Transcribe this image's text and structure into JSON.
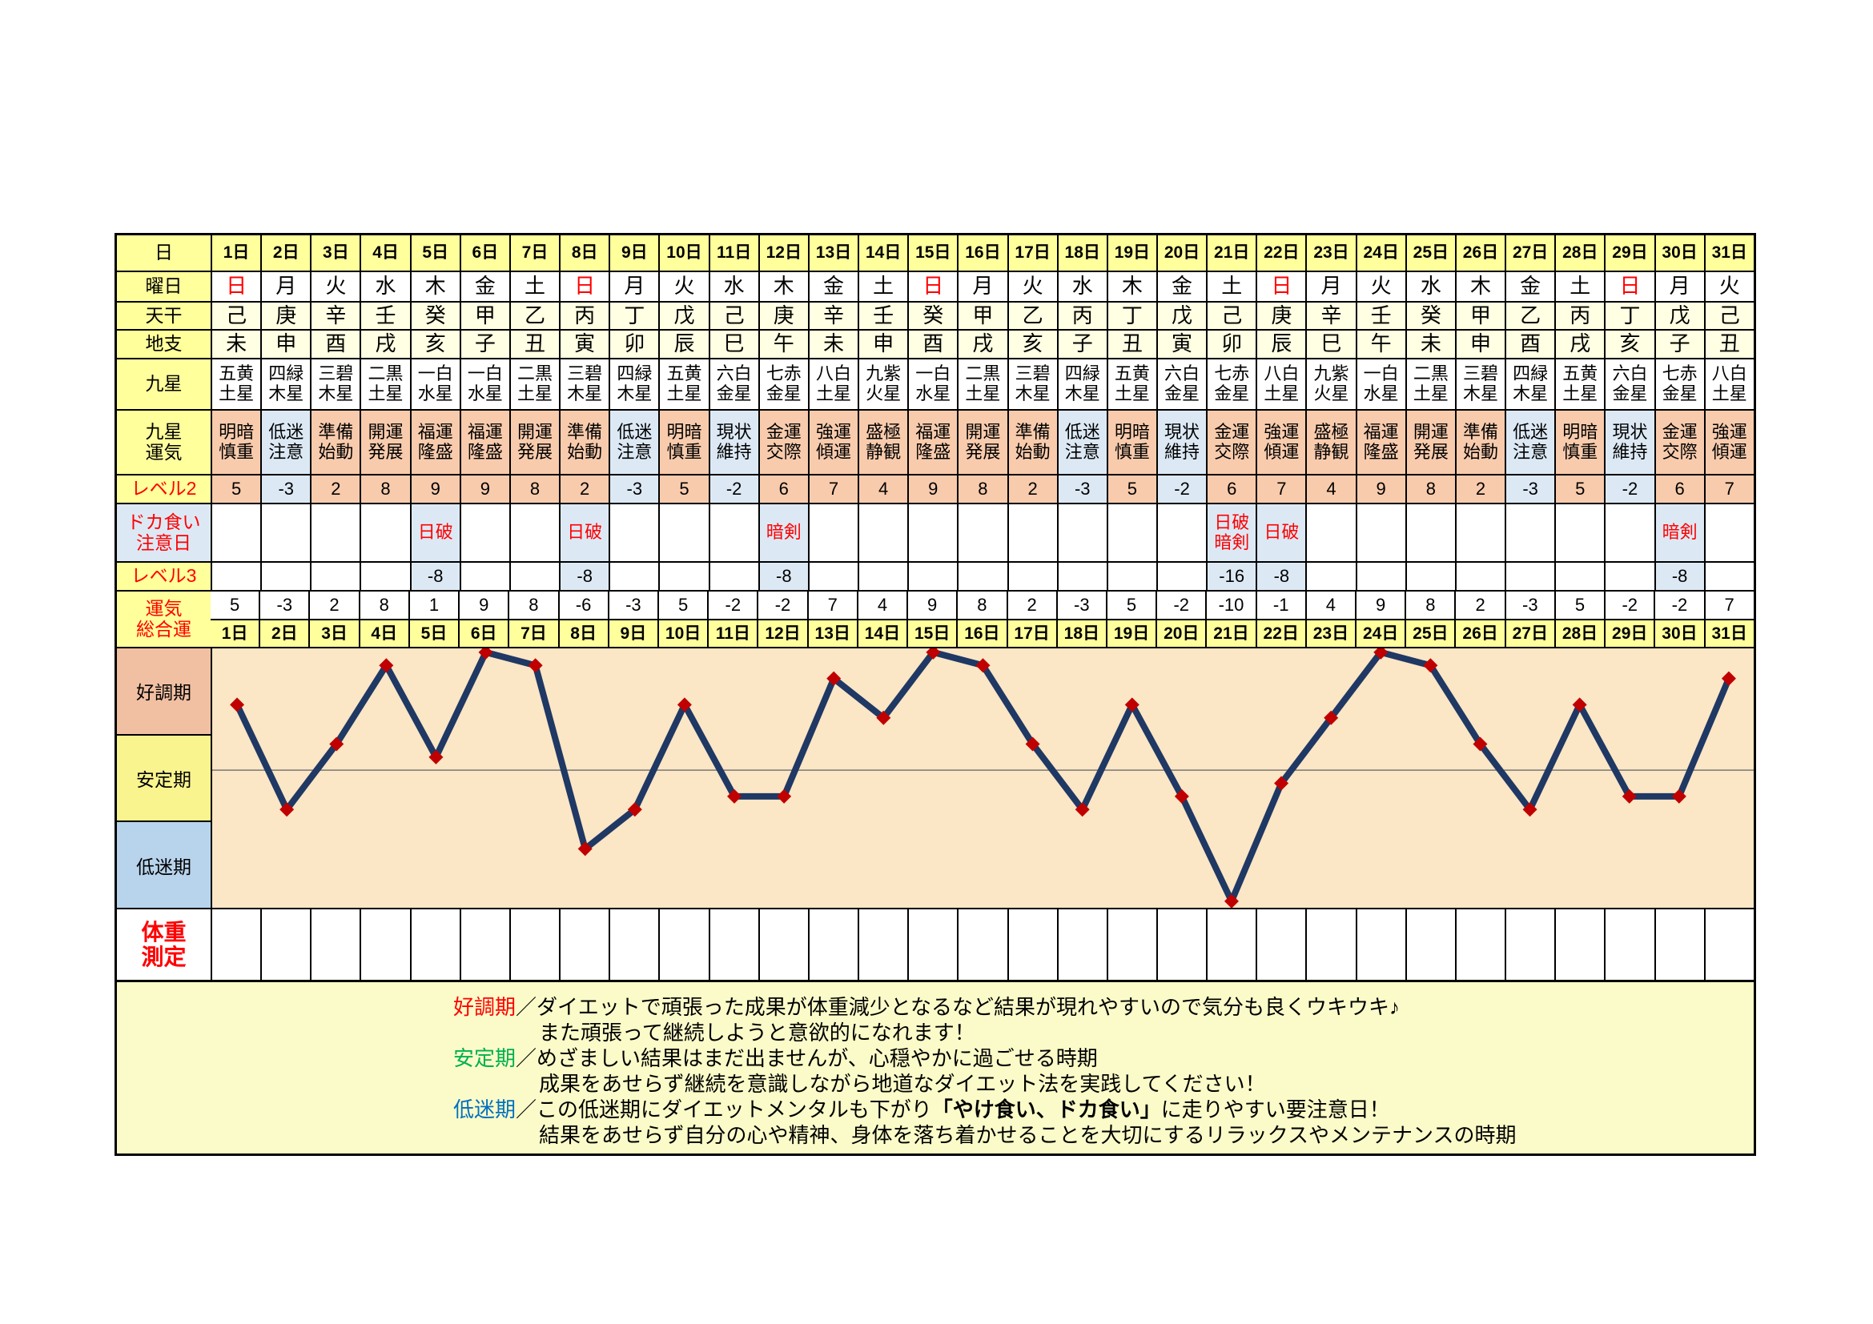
{
  "row_labels": {
    "day": "日",
    "weekday": "曜日",
    "stem": "天干",
    "branch": "地支",
    "star": "九星",
    "fortune": "九星\n運気",
    "level2": "レベル2",
    "caution": "ドカ食い\n注意日",
    "level3": "レベル3",
    "total": "運気\n総合運",
    "weight": "体重\n測定"
  },
  "bands": [
    {
      "label": "好調期",
      "color": "#F1C0A2"
    },
    {
      "label": "安定期",
      "color": "#FAF48F"
    },
    {
      "label": "低迷期",
      "color": "#B8D4EC"
    }
  ],
  "days": [
    {
      "day": "1日",
      "weekday": "日",
      "sunday": true,
      "stem": "己",
      "branch": "未",
      "star": "五黄\n土星",
      "fortune": "明暗\n慎重",
      "tone": "pink",
      "level2": "5",
      "caution": "",
      "level3": "",
      "total": "5"
    },
    {
      "day": "2日",
      "weekday": "月",
      "sunday": false,
      "stem": "庚",
      "branch": "申",
      "star": "四緑\n木星",
      "fortune": "低迷\n注意",
      "tone": "blue",
      "level2": "-3",
      "caution": "",
      "level3": "",
      "total": "-3"
    },
    {
      "day": "3日",
      "weekday": "火",
      "sunday": false,
      "stem": "辛",
      "branch": "酉",
      "star": "三碧\n木星",
      "fortune": "準備\n始動",
      "tone": "pink",
      "level2": "2",
      "caution": "",
      "level3": "",
      "total": "2"
    },
    {
      "day": "4日",
      "weekday": "水",
      "sunday": false,
      "stem": "壬",
      "branch": "戌",
      "star": "二黒\n土星",
      "fortune": "開運\n発展",
      "tone": "pink",
      "level2": "8",
      "caution": "",
      "level3": "",
      "total": "8"
    },
    {
      "day": "5日",
      "weekday": "木",
      "sunday": false,
      "stem": "癸",
      "branch": "亥",
      "star": "一白\n水星",
      "fortune": "福運\n隆盛",
      "tone": "pink",
      "level2": "9",
      "caution": "日破",
      "level3": "-8",
      "total": "1"
    },
    {
      "day": "6日",
      "weekday": "金",
      "sunday": false,
      "stem": "甲",
      "branch": "子",
      "star": "一白\n水星",
      "fortune": "福運\n隆盛",
      "tone": "pink",
      "level2": "9",
      "caution": "",
      "level3": "",
      "total": "9"
    },
    {
      "day": "7日",
      "weekday": "土",
      "sunday": false,
      "stem": "乙",
      "branch": "丑",
      "star": "二黒\n土星",
      "fortune": "開運\n発展",
      "tone": "pink",
      "level2": "8",
      "caution": "",
      "level3": "",
      "total": "8"
    },
    {
      "day": "8日",
      "weekday": "日",
      "sunday": true,
      "stem": "丙",
      "branch": "寅",
      "star": "三碧\n木星",
      "fortune": "準備\n始動",
      "tone": "pink",
      "level2": "2",
      "caution": "日破",
      "level3": "-8",
      "total": "-6"
    },
    {
      "day": "9日",
      "weekday": "月",
      "sunday": false,
      "stem": "丁",
      "branch": "卯",
      "star": "四緑\n木星",
      "fortune": "低迷\n注意",
      "tone": "blue",
      "level2": "-3",
      "caution": "",
      "level3": "",
      "total": "-3"
    },
    {
      "day": "10日",
      "weekday": "火",
      "sunday": false,
      "stem": "戊",
      "branch": "辰",
      "star": "五黄\n土星",
      "fortune": "明暗\n慎重",
      "tone": "pink",
      "level2": "5",
      "caution": "",
      "level3": "",
      "total": "5"
    },
    {
      "day": "11日",
      "weekday": "水",
      "sunday": false,
      "stem": "己",
      "branch": "巳",
      "star": "六白\n金星",
      "fortune": "現状\n維持",
      "tone": "blue",
      "level2": "-2",
      "caution": "",
      "level3": "",
      "total": "-2"
    },
    {
      "day": "12日",
      "weekday": "木",
      "sunday": false,
      "stem": "庚",
      "branch": "午",
      "star": "七赤\n金星",
      "fortune": "金運\n交際",
      "tone": "pink",
      "level2": "6",
      "caution": "暗剣",
      "level3": "-8",
      "total": "-2"
    },
    {
      "day": "13日",
      "weekday": "金",
      "sunday": false,
      "stem": "辛",
      "branch": "未",
      "star": "八白\n土星",
      "fortune": "強運\n傾運",
      "tone": "pink",
      "level2": "7",
      "caution": "",
      "level3": "",
      "total": "7"
    },
    {
      "day": "14日",
      "weekday": "土",
      "sunday": false,
      "stem": "壬",
      "branch": "申",
      "star": "九紫\n火星",
      "fortune": "盛極\n静観",
      "tone": "pink",
      "level2": "4",
      "caution": "",
      "level3": "",
      "total": "4"
    },
    {
      "day": "15日",
      "weekday": "日",
      "sunday": true,
      "stem": "癸",
      "branch": "酉",
      "star": "一白\n水星",
      "fortune": "福運\n隆盛",
      "tone": "pink",
      "level2": "9",
      "caution": "",
      "level3": "",
      "total": "9"
    },
    {
      "day": "16日",
      "weekday": "月",
      "sunday": false,
      "stem": "甲",
      "branch": "戌",
      "star": "二黒\n土星",
      "fortune": "開運\n発展",
      "tone": "pink",
      "level2": "8",
      "caution": "",
      "level3": "",
      "total": "8"
    },
    {
      "day": "17日",
      "weekday": "火",
      "sunday": false,
      "stem": "乙",
      "branch": "亥",
      "star": "三碧\n木星",
      "fortune": "準備\n始動",
      "tone": "pink",
      "level2": "2",
      "caution": "",
      "level3": "",
      "total": "2"
    },
    {
      "day": "18日",
      "weekday": "水",
      "sunday": false,
      "stem": "丙",
      "branch": "子",
      "star": "四緑\n木星",
      "fortune": "低迷\n注意",
      "tone": "blue",
      "level2": "-3",
      "caution": "",
      "level3": "",
      "total": "-3"
    },
    {
      "day": "19日",
      "weekday": "木",
      "sunday": false,
      "stem": "丁",
      "branch": "丑",
      "star": "五黄\n土星",
      "fortune": "明暗\n慎重",
      "tone": "pink",
      "level2": "5",
      "caution": "",
      "level3": "",
      "total": "5"
    },
    {
      "day": "20日",
      "weekday": "金",
      "sunday": false,
      "stem": "戊",
      "branch": "寅",
      "star": "六白\n金星",
      "fortune": "現状\n維持",
      "tone": "blue",
      "level2": "-2",
      "caution": "",
      "level3": "",
      "total": "-2"
    },
    {
      "day": "21日",
      "weekday": "土",
      "sunday": false,
      "stem": "己",
      "branch": "卯",
      "star": "七赤\n金星",
      "fortune": "金運\n交際",
      "tone": "pink",
      "level2": "6",
      "caution": "日破\n暗剣",
      "level3": "-16",
      "total": "-10"
    },
    {
      "day": "22日",
      "weekday": "日",
      "sunday": true,
      "stem": "庚",
      "branch": "辰",
      "star": "八白\n土星",
      "fortune": "強運\n傾運",
      "tone": "pink",
      "level2": "7",
      "caution": "日破",
      "level3": "-8",
      "total": "-1"
    },
    {
      "day": "23日",
      "weekday": "月",
      "sunday": false,
      "stem": "辛",
      "branch": "巳",
      "star": "九紫\n火星",
      "fortune": "盛極\n静観",
      "tone": "pink",
      "level2": "4",
      "caution": "",
      "level3": "",
      "total": "4"
    },
    {
      "day": "24日",
      "weekday": "火",
      "sunday": false,
      "stem": "壬",
      "branch": "午",
      "star": "一白\n水星",
      "fortune": "福運\n隆盛",
      "tone": "pink",
      "level2": "9",
      "caution": "",
      "level3": "",
      "total": "9"
    },
    {
      "day": "25日",
      "weekday": "水",
      "sunday": false,
      "stem": "癸",
      "branch": "未",
      "star": "二黒\n土星",
      "fortune": "開運\n発展",
      "tone": "pink",
      "level2": "8",
      "caution": "",
      "level3": "",
      "total": "8"
    },
    {
      "day": "26日",
      "weekday": "木",
      "sunday": false,
      "stem": "甲",
      "branch": "申",
      "star": "三碧\n木星",
      "fortune": "準備\n始動",
      "tone": "pink",
      "level2": "2",
      "caution": "",
      "level3": "",
      "total": "2"
    },
    {
      "day": "27日",
      "weekday": "金",
      "sunday": false,
      "stem": "乙",
      "branch": "酉",
      "star": "四緑\n木星",
      "fortune": "低迷\n注意",
      "tone": "blue",
      "level2": "-3",
      "caution": "",
      "level3": "",
      "total": "-3"
    },
    {
      "day": "28日",
      "weekday": "土",
      "sunday": false,
      "stem": "丙",
      "branch": "戌",
      "star": "五黄\n土星",
      "fortune": "明暗\n慎重",
      "tone": "pink",
      "level2": "5",
      "caution": "",
      "level3": "",
      "total": "5"
    },
    {
      "day": "29日",
      "weekday": "日",
      "sunday": true,
      "stem": "丁",
      "branch": "亥",
      "star": "六白\n金星",
      "fortune": "現状\n維持",
      "tone": "blue",
      "level2": "-2",
      "caution": "",
      "level3": "",
      "total": "-2"
    },
    {
      "day": "30日",
      "weekday": "月",
      "sunday": false,
      "stem": "戊",
      "branch": "子",
      "star": "七赤\n金星",
      "fortune": "金運\n交際",
      "tone": "pink",
      "level2": "6",
      "caution": "暗剣",
      "level3": "-8",
      "total": "-2"
    },
    {
      "day": "31日",
      "weekday": "火",
      "sunday": false,
      "stem": "己",
      "branch": "丑",
      "star": "八白\n土星",
      "fortune": "強運\n傾運",
      "tone": "pink",
      "level2": "7",
      "caution": "",
      "level3": "",
      "total": "7"
    }
  ],
  "chart_data": {
    "type": "line",
    "series_name": "運気総合運",
    "categories": [
      "1日",
      "2日",
      "3日",
      "4日",
      "5日",
      "6日",
      "7日",
      "8日",
      "9日",
      "10日",
      "11日",
      "12日",
      "13日",
      "14日",
      "15日",
      "16日",
      "17日",
      "18日",
      "19日",
      "20日",
      "21日",
      "22日",
      "23日",
      "24日",
      "25日",
      "26日",
      "27日",
      "28日",
      "29日",
      "30日",
      "31日"
    ],
    "values": [
      5,
      -3,
      2,
      8,
      1,
      9,
      8,
      -6,
      -3,
      5,
      -2,
      -2,
      7,
      4,
      9,
      8,
      2,
      -3,
      5,
      -2,
      -10,
      -1,
      4,
      9,
      8,
      2,
      -3,
      5,
      -2,
      -2,
      7
    ],
    "ylim": [
      -10.5,
      9.3
    ],
    "zero_line": true,
    "zones": [
      {
        "label": "好調期",
        "y_from": 2.7,
        "y_to": 9.3
      },
      {
        "label": "安定期",
        "y_from": -3.9,
        "y_to": 2.7
      },
      {
        "label": "低迷期",
        "y_from": -10.5,
        "y_to": -3.9
      }
    ],
    "legend_position": "left-bands",
    "grid": false
  },
  "colors": {
    "header_yellow": "#FFFF9C",
    "ivory": "#FFFFE3",
    "pink": "#F8CBAD",
    "light_blue": "#DCE9F5",
    "plot_bg": "#FBE6C5",
    "band_good": "#F1C0A2",
    "band_stable": "#FAF48F",
    "band_low": "#B8D4EC",
    "legend_bg": "#FBFBC9",
    "line": "#1F3864",
    "marker": "#C00000",
    "red_text": "#FF0000",
    "green_text": "#00B050",
    "blue_text": "#0070C0",
    "zero_line": "#777777"
  },
  "legend": {
    "separator": "／",
    "items": [
      {
        "term": "好調期",
        "term_color": "#FF0000",
        "line1": [
          {
            "text": "ダイエットで頑張った成果が体重減少となるなど結果が現れやすいので気分も良くウキウキ♪",
            "bold": false
          }
        ],
        "line2": "また頑張って継続しようと意欲的になれます！"
      },
      {
        "term": "安定期",
        "term_color": "#00B050",
        "line1": [
          {
            "text": "めざましい結果はまだ出ませんが、心穏やかに過ごせる時期",
            "bold": false
          }
        ],
        "line2": "成果をあせらず継続を意識しながら地道なダイエット法を実践してください！"
      },
      {
        "term": "低迷期",
        "term_color": "#0070C0",
        "line1": [
          {
            "text": "この低迷期にダイエットメンタルも下がり",
            "bold": false
          },
          {
            "text": "「やけ食い、ドカ食い」",
            "bold": true
          },
          {
            "text": "に走りやすい要注意日！",
            "bold": false
          }
        ],
        "line2": "結果をあせらず自分の心や精神、身体を落ち着かせることを大切にするリラックスやメンテナンスの時期"
      }
    ]
  }
}
